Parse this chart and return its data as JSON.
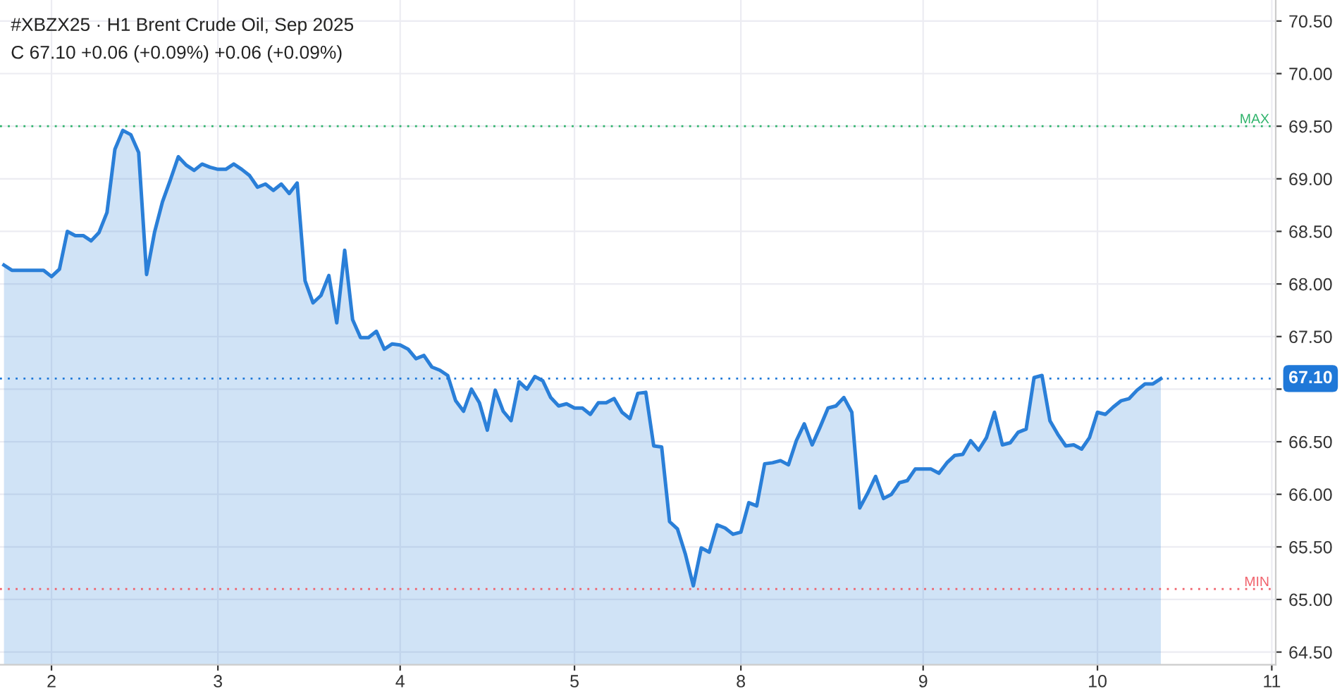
{
  "chart_data": {
    "type": "area",
    "title": "#XBZX25 · H1 Brent Crude Oil, Sep 2025",
    "subtitle": "C 67.10 +0.06 (+0.09%) +0.06 (+0.09%)",
    "categories": [
      null,
      null,
      null,
      null,
      null,
      null,
      "2",
      null,
      null,
      null,
      null,
      null,
      null,
      null,
      null,
      null,
      null,
      null,
      null,
      null,
      null,
      null,
      null,
      null,
      null,
      null,
      null,
      "3",
      null,
      null,
      null,
      null,
      null,
      null,
      null,
      null,
      null,
      null,
      null,
      null,
      null,
      null,
      null,
      null,
      null,
      null,
      null,
      null,
      null,
      null,
      "4",
      null,
      null,
      null,
      null,
      null,
      null,
      null,
      null,
      null,
      null,
      null,
      null,
      null,
      null,
      null,
      null,
      null,
      null,
      null,
      null,
      null,
      "5",
      null,
      null,
      null,
      null,
      null,
      null,
      null,
      null,
      null,
      null,
      null,
      null,
      null,
      null,
      null,
      null,
      null,
      null,
      null,
      null,
      "8",
      null,
      null,
      null,
      null,
      null,
      null,
      null,
      null,
      null,
      null,
      null,
      null,
      null,
      null,
      null,
      null,
      null,
      null,
      null,
      null,
      null,
      null,
      "9",
      null,
      null,
      null,
      null,
      null,
      null,
      null,
      null,
      null,
      null,
      null,
      null,
      null,
      null,
      null,
      null,
      null,
      null,
      null,
      null,
      null,
      "10",
      null,
      null,
      null,
      null,
      null,
      null,
      null,
      null,
      null,
      null,
      null,
      null,
      null,
      null,
      null,
      null,
      null,
      null,
      null,
      null,
      null,
      "11"
    ],
    "series": [
      {
        "color": "#2a7fd8",
        "values": [
          68.18,
          68.13,
          68.13,
          68.13,
          68.13,
          68.13,
          68.07,
          68.14,
          68.5,
          68.46,
          68.46,
          68.41,
          68.49,
          68.68,
          69.28,
          69.46,
          69.42,
          69.25,
          68.09,
          68.49,
          68.78,
          68.99,
          69.21,
          69.13,
          69.08,
          69.14,
          69.11,
          69.09,
          69.09,
          69.14,
          69.09,
          69.03,
          68.92,
          68.95,
          68.89,
          68.95,
          68.86,
          68.96,
          68.03,
          67.82,
          67.89,
          68.08,
          67.63,
          68.32,
          67.66,
          67.49,
          67.49,
          67.55,
          67.38,
          67.43,
          67.42,
          67.38,
          67.29,
          67.32,
          67.21,
          67.18,
          67.13,
          66.89,
          66.79,
          67.0,
          66.87,
          66.61,
          66.99,
          66.79,
          66.7,
          67.07,
          67.0,
          67.12,
          67.08,
          66.92,
          66.84,
          66.86,
          66.82,
          66.82,
          66.76,
          66.87,
          66.87,
          66.91,
          66.78,
          66.72,
          66.96,
          66.97,
          66.46,
          66.45,
          65.74,
          65.67,
          65.43,
          65.13,
          65.49,
          65.45,
          65.71,
          65.68,
          65.62,
          65.64,
          65.92,
          65.89,
          66.29,
          66.3,
          66.32,
          66.28,
          66.51,
          66.67,
          66.47,
          66.64,
          66.82,
          66.84,
          66.92,
          66.78,
          65.87,
          66.01,
          66.17,
          65.96,
          66.0,
          66.11,
          66.13,
          66.24,
          66.24,
          66.24,
          66.2,
          66.3,
          66.37,
          66.38,
          66.51,
          66.42,
          66.54,
          66.78,
          66.47,
          66.49,
          66.59,
          66.62,
          67.11,
          67.13,
          66.7,
          66.57,
          66.46,
          66.47,
          66.43,
          66.54,
          66.78,
          66.76,
          66.83,
          66.89,
          66.91,
          66.99,
          67.05,
          67.05,
          67.1,
          null,
          null,
          null,
          null,
          null,
          null,
          null,
          null,
          null,
          null,
          null,
          null,
          null,
          null
        ]
      }
    ],
    "ylim": [
      64.38,
      70.7
    ],
    "yticks": [
      {
        "value": 64.5,
        "label": "64.50"
      },
      {
        "value": 65.0,
        "label": "65.00"
      },
      {
        "value": 65.5,
        "label": "65.50"
      },
      {
        "value": 66.0,
        "label": "66.00"
      },
      {
        "value": 66.5,
        "label": "66.50"
      },
      {
        "value": 67.0,
        "label": null
      },
      {
        "value": 67.5,
        "label": "67.50"
      },
      {
        "value": 68.0,
        "label": "68.00"
      },
      {
        "value": 68.5,
        "label": "68.50"
      },
      {
        "value": 69.0,
        "label": "69.00"
      },
      {
        "value": 69.5,
        "label": "69.50"
      },
      {
        "value": 70.0,
        "label": "70.00"
      },
      {
        "value": 70.5,
        "label": "70.50"
      }
    ],
    "ref_lines": [
      {
        "axis": "y",
        "value": 69.5,
        "label": "MAX",
        "color": "#2fb36b",
        "line_style": "dotted"
      },
      {
        "axis": "y",
        "value": 65.1,
        "label": "MIN",
        "color": "#f0606a",
        "line_style": "dotted"
      },
      {
        "axis": "y",
        "value": 67.1,
        "label": "67.10",
        "color": "#1f78d8",
        "line_style": "dotted"
      }
    ],
    "grid": true
  }
}
